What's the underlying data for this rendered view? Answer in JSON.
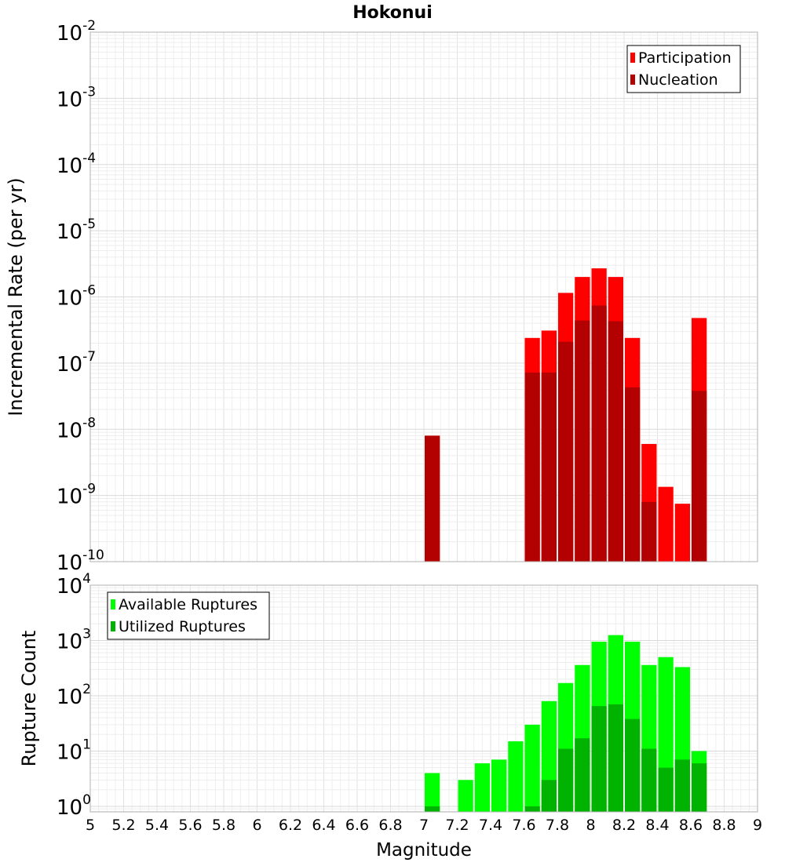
{
  "chart_data": [
    {
      "type": "bar",
      "title": "Hokonui",
      "xlabel": "",
      "ylabel": "Incremental Rate (per yr)",
      "yscale": "log",
      "ylim_exp": [
        -10,
        -2
      ],
      "xlim": [
        5,
        9
      ],
      "tick_base": "10",
      "y_tick_exponents": [
        "-10",
        "-9",
        "-8",
        "-7",
        "-6",
        "-5",
        "-4",
        "-3",
        "-2"
      ],
      "legend_position": "top-right",
      "series": [
        {
          "name": "Participation",
          "color": "#ff0000",
          "x": [
            7.05,
            7.65,
            7.75,
            7.85,
            7.95,
            8.05,
            8.15,
            8.25,
            8.35,
            8.45,
            8.55,
            8.65
          ],
          "values": [
            8e-09,
            2.4e-07,
            3.1e-07,
            1.15e-06,
            2e-06,
            2.7e-06,
            2e-06,
            2.4e-07,
            6e-09,
            1.35e-09,
            7.5e-10,
            4.8e-07
          ]
        },
        {
          "name": "Nucleation",
          "color": "#b30000",
          "x": [
            7.05,
            7.65,
            7.75,
            7.85,
            7.95,
            8.05,
            8.15,
            8.25,
            8.35,
            8.65
          ],
          "values": [
            8e-09,
            7.2e-08,
            7.2e-08,
            2.1e-07,
            4.4e-07,
            7.4e-07,
            4.3e-07,
            4.3e-08,
            8e-10,
            3.8e-08
          ]
        }
      ]
    },
    {
      "type": "bar",
      "title": "",
      "xlabel": "Magnitude",
      "ylabel": "Rupture Count",
      "yscale": "log",
      "ylim_exp": [
        -0.1,
        4
      ],
      "xlim": [
        5,
        9
      ],
      "tick_base": "10",
      "y_tick_exponents": [
        "0",
        "1",
        "2",
        "3",
        "4"
      ],
      "x_ticks": [
        "5",
        "5.2",
        "5.4",
        "5.6",
        "5.8",
        "6",
        "6.2",
        "6.4",
        "6.6",
        "6.8",
        "7",
        "7.2",
        "7.4",
        "7.6",
        "7.8",
        "8",
        "8.2",
        "8.4",
        "8.6",
        "8.8",
        "9"
      ],
      "legend_position": "top-left",
      "series": [
        {
          "name": "Available Ruptures",
          "color": "#00ff00",
          "x": [
            7.05,
            7.25,
            7.35,
            7.45,
            7.55,
            7.65,
            7.75,
            7.85,
            7.95,
            8.05,
            8.15,
            8.25,
            8.35,
            8.45,
            8.55,
            8.65
          ],
          "values": [
            4,
            3,
            6,
            7,
            15,
            30,
            80,
            170,
            360,
            950,
            1250,
            950,
            360,
            500,
            330,
            10
          ]
        },
        {
          "name": "Utilized Ruptures",
          "color": "#00b300",
          "x": [
            7.05,
            7.65,
            7.75,
            7.85,
            7.95,
            8.05,
            8.15,
            8.25,
            8.35,
            8.45,
            8.55,
            8.65
          ],
          "values": [
            1,
            1,
            3,
            11,
            17,
            65,
            70,
            38,
            11,
            5,
            7,
            6
          ]
        }
      ]
    }
  ]
}
